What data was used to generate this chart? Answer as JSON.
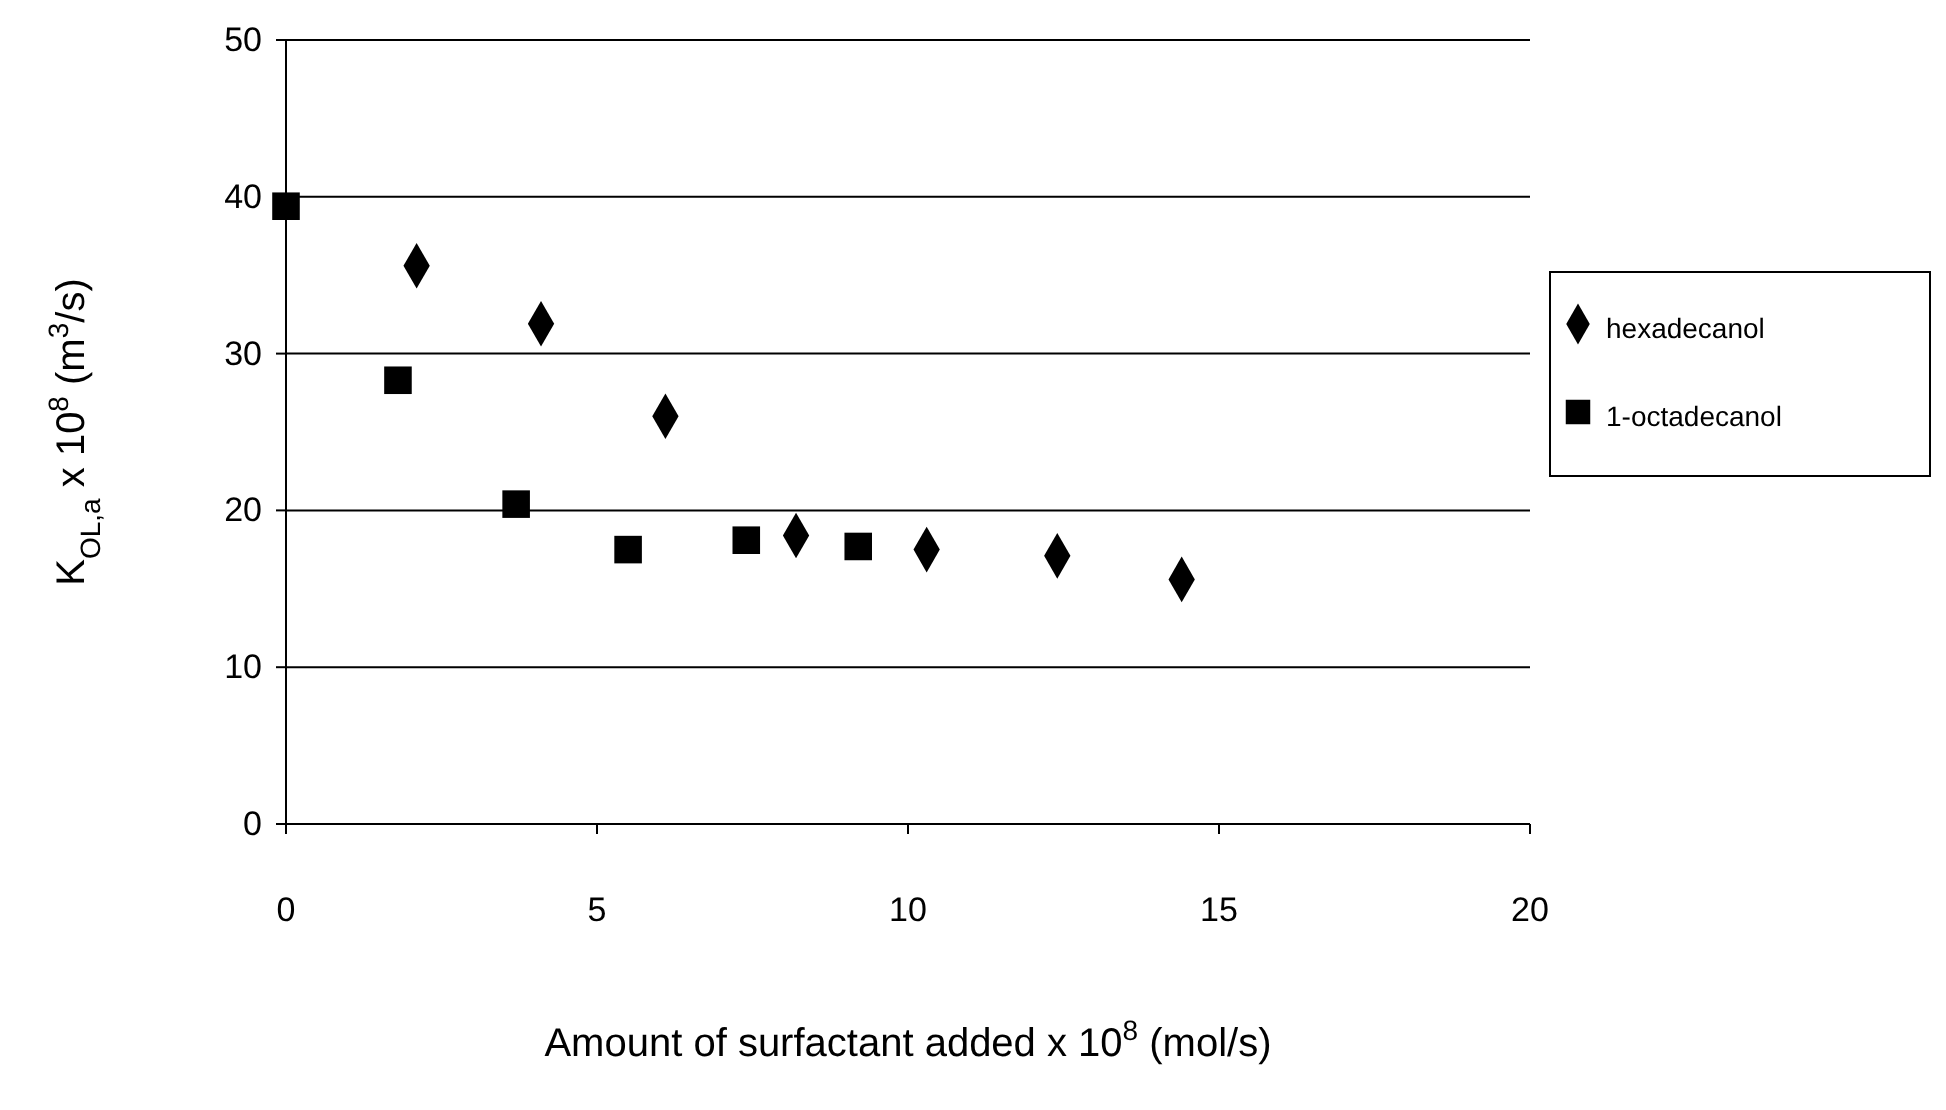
{
  "chart_data": {
    "type": "scatter",
    "xlabel": "Amount of surfactant added  x  10$^{8}$  (mol/s)",
    "ylabel": "K$_{OL,a}$  x  10$^{8}$  (m$^{3}$/s)",
    "xlim": [
      0,
      20
    ],
    "xticks": [
      0,
      5,
      10,
      15,
      20
    ],
    "ylim": [
      0,
      50
    ],
    "yticks": [
      0,
      10,
      20,
      30,
      40,
      50
    ],
    "grid": "y",
    "legend": "right",
    "series": [
      {
        "name": "hexadecanol",
        "color": "#000000",
        "marker": "diamond",
        "x": [
          2.1,
          4.1,
          6.1,
          8.2,
          10.3,
          12.4,
          14.4
        ],
        "values": [
          35.6,
          31.9,
          26.0,
          18.4,
          17.5,
          17.1,
          15.6
        ]
      },
      {
        "name": "1-octadecanol",
        "color": "#000000",
        "marker": "square",
        "x": [
          0,
          1.8,
          3.7,
          5.5,
          7.4,
          9.2
        ],
        "values": [
          39.4,
          28.3,
          20.4,
          17.5,
          18.1,
          17.7
        ]
      }
    ]
  }
}
